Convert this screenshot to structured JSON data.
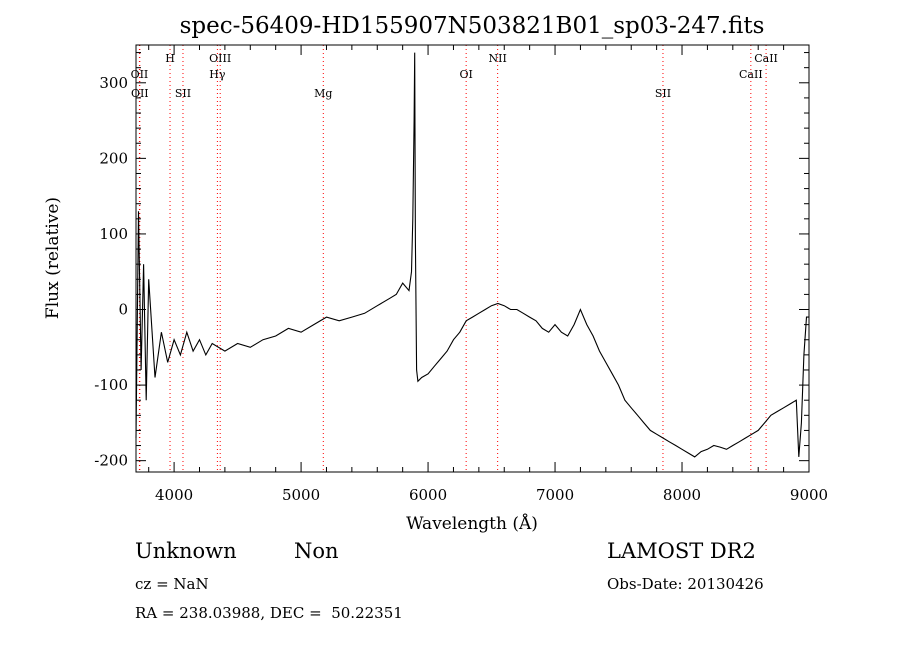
{
  "chart_data": {
    "type": "line",
    "title": "spec-56409-HD155907N503821B01_sp03-247.fits",
    "xlabel": "Wavelength (Å)",
    "ylabel": "Flux (relative)",
    "xlim": [
      3700,
      9000
    ],
    "ylim": [
      -215,
      350
    ],
    "x_ticks": [
      4000,
      5000,
      6000,
      7000,
      8000,
      9000
    ],
    "y_ticks": [
      -200,
      -100,
      0,
      100,
      200,
      300
    ],
    "grid": false,
    "line_color": "#000000",
    "marker_color": "#ff0000",
    "series": [
      {
        "x": [
          3700,
          3720,
          3740,
          3760,
          3780,
          3800,
          3850,
          3900,
          3950,
          4000,
          4050,
          4100,
          4150,
          4200,
          4250,
          4300,
          4400,
          4500,
          4600,
          4700,
          4800,
          4900,
          5000,
          5100,
          5200,
          5300,
          5400,
          5500,
          5600,
          5700,
          5750,
          5800,
          5850,
          5870,
          5880,
          5890,
          5895,
          5900,
          5910,
          5920,
          5950,
          6000,
          6050,
          6100,
          6150,
          6200,
          6250,
          6300,
          6350,
          6400,
          6450,
          6500,
          6550,
          6600,
          6650,
          6700,
          6750,
          6800,
          6850,
          6900,
          6950,
          7000,
          7050,
          7100,
          7150,
          7200,
          7250,
          7300,
          7350,
          7400,
          7450,
          7500,
          7550,
          7600,
          7650,
          7700,
          7750,
          7800,
          7850,
          7900,
          7950,
          8000,
          8050,
          8100,
          8150,
          8200,
          8250,
          8300,
          8350,
          8400,
          8450,
          8500,
          8550,
          8600,
          8650,
          8700,
          8750,
          8800,
          8850,
          8900,
          8920,
          8940,
          8960,
          8980,
          9000
        ],
        "y": [
          -170,
          130,
          -80,
          60,
          -120,
          40,
          -90,
          -30,
          -70,
          -40,
          -60,
          -30,
          -55,
          -40,
          -60,
          -45,
          -55,
          -45,
          -50,
          -40,
          -35,
          -25,
          -30,
          -20,
          -10,
          -15,
          -10,
          -5,
          5,
          15,
          20,
          35,
          25,
          50,
          120,
          250,
          340,
          90,
          -80,
          -95,
          -90,
          -85,
          -75,
          -65,
          -55,
          -40,
          -30,
          -15,
          -10,
          -5,
          0,
          5,
          8,
          5,
          0,
          0,
          -5,
          -10,
          -15,
          -25,
          -30,
          -20,
          -30,
          -35,
          -20,
          0,
          -20,
          -35,
          -55,
          -70,
          -85,
          -100,
          -120,
          -130,
          -140,
          -150,
          -160,
          -165,
          -170,
          -175,
          -180,
          -185,
          -190,
          -195,
          -188,
          -185,
          -180,
          -182,
          -185,
          -180,
          -175,
          -170,
          -165,
          -160,
          -150,
          -140,
          -135,
          -130,
          -125,
          -120,
          -195,
          -150,
          -60,
          -10,
          -10
        ]
      }
    ],
    "lines": [
      {
        "label": "OII",
        "x": 3727,
        "row": 1
      },
      {
        "label": "OII",
        "x": 3730,
        "row": 2
      },
      {
        "label": "H",
        "x": 3968,
        "row": 0
      },
      {
        "label": "SII",
        "x": 4070,
        "row": 2
      },
      {
        "label": "OIII",
        "x": 4363,
        "row": 0
      },
      {
        "label": "Hγ",
        "x": 4341,
        "row": 1
      },
      {
        "label": "Mg",
        "x": 5175,
        "row": 2
      },
      {
        "label": "OI",
        "x": 6300,
        "row": 1
      },
      {
        "label": "NII",
        "x": 6548,
        "row": 0
      },
      {
        "label": "SII",
        "x": 7850,
        "row": 2
      },
      {
        "label": "CaII",
        "x": 8542,
        "row": 1
      },
      {
        "label": "CaII",
        "x": 8662,
        "row": 0
      }
    ]
  },
  "footer": {
    "object_type": "Unknown",
    "subclass": "Non",
    "survey": "LAMOST DR2",
    "cz": "cz = NaN",
    "obs_date": "Obs-Date: 20130426",
    "coords": "RA = 238.03988, DEC =  50.22351"
  }
}
